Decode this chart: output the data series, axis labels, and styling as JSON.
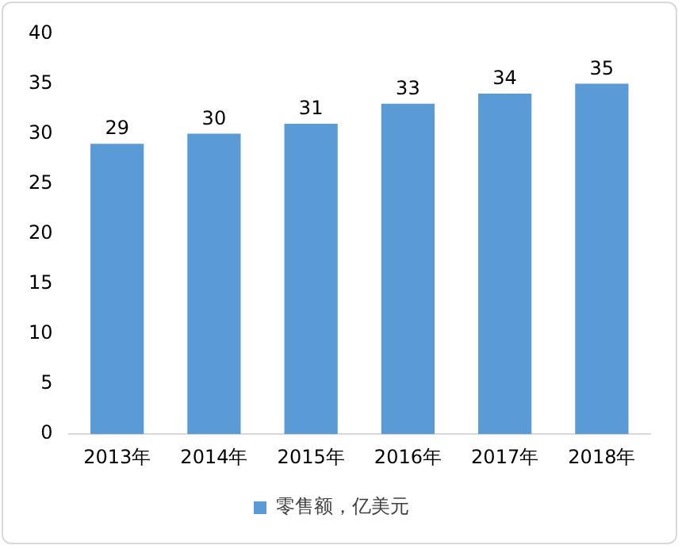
{
  "chart_data": {
    "type": "bar",
    "categories": [
      "2013年",
      "2014年",
      "2015年",
      "2016年",
      "2017年",
      "2018年"
    ],
    "series": [
      {
        "name": "零售额，亿美元",
        "color": "#5b9bd5",
        "values": [
          29,
          30,
          31,
          33,
          34,
          35
        ]
      }
    ],
    "ylim": [
      0,
      40
    ],
    "yticks": [
      0,
      5,
      10,
      15,
      20,
      25,
      30,
      35,
      40
    ],
    "grid": false,
    "legend": "bottom",
    "data_labels": true
  }
}
